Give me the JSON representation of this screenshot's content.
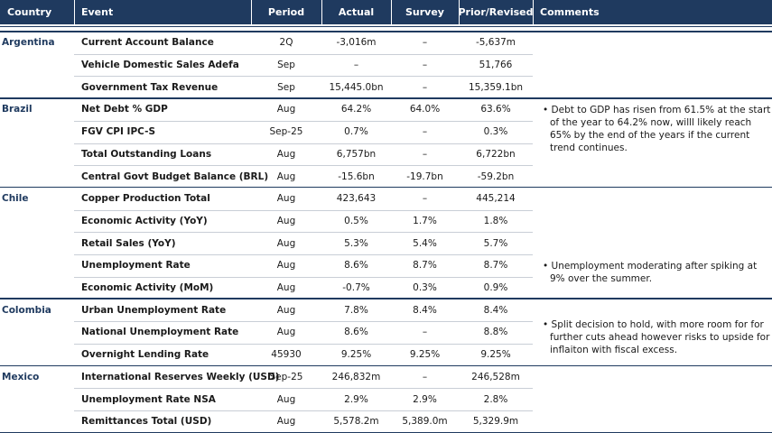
{
  "table": {
    "header": [
      "Country",
      "Event",
      "Period",
      "Actual",
      "Survey",
      "Prior/Revised",
      "Comments"
    ],
    "groups": [
      {
        "country": "Argentina",
        "rows": [
          [
            "Current Account Balance",
            "2Q",
            "-3,016m",
            "–",
            "-5,637m"
          ],
          [
            "Vehicle Domestic Sales Adefa",
            "Sep",
            "–",
            "–",
            "51,766"
          ],
          [
            "Government Tax Revenue",
            "Sep",
            "15,445.0bn",
            "–",
            "15,359.1bn"
          ]
        ]
      },
      {
        "country": "Brazil",
        "rows": [
          [
            "Net Debt % GDP",
            "Aug",
            "64.2%",
            "64.0%",
            "63.6%"
          ],
          [
            "FGV CPI IPC-S",
            "Sep-25",
            "0.7%",
            "–",
            "0.3%"
          ],
          [
            "Total Outstanding Loans",
            "Aug",
            "6,757bn",
            "–",
            "6,722bn"
          ],
          [
            "Central Govt Budget Balance (BRL)",
            "Aug",
            "-15.6bn",
            "-19.7bn",
            "-59.2bn"
          ]
        ],
        "comment": "Debt to GDP has risen from 61.5% at the start of the year to 64.2% now, willl likely reach 65% by the end of the years if the current trend continues."
      },
      {
        "country": "Chile",
        "rows": [
          [
            "Copper Production Total",
            "Aug",
            "423,643",
            "–",
            "445,214"
          ],
          [
            "Economic Activity (YoY)",
            "Aug",
            "0.5%",
            "1.7%",
            "1.8%"
          ],
          [
            "Retail Sales (YoY)",
            "Aug",
            "5.3%",
            "5.4%",
            "5.7%"
          ],
          [
            "Unemployment Rate",
            "Aug",
            "8.6%",
            "8.7%",
            "8.7%"
          ],
          [
            "Economic Activity (MoM)",
            "Aug",
            "-0.7%",
            "0.3%",
            "0.9%"
          ]
        ],
        "comment": "Unemployment moderating after spiking at 9% over the summer."
      },
      {
        "country": "Colombia",
        "rows": [
          [
            "Urban Unemployment Rate",
            "Aug",
            "7.8%",
            "8.4%",
            "8.4%"
          ],
          [
            "National Unemployment Rate",
            "Aug",
            "8.6%",
            "–",
            "8.8%"
          ],
          [
            "Overnight Lending Rate",
            "45930",
            "9.25%",
            "9.25%",
            "9.25%"
          ]
        ],
        "comment": "Split decision to hold, with more room for for further cuts ahead however risks to upside for inflaiton with fiscal excess."
      },
      {
        "country": "Mexico",
        "rows": [
          [
            "International Reserves Weekly (USD)",
            "Sep-25",
            "246,832m",
            "–",
            "246,528m"
          ],
          [
            "Unemployment Rate NSA",
            "Aug",
            "2.9%",
            "2.9%",
            "2.8%"
          ],
          [
            "Remittances Total (USD)",
            "Aug",
            "5,578.2m",
            "5,389.0m",
            "5,329.9m"
          ]
        ]
      }
    ]
  }
}
